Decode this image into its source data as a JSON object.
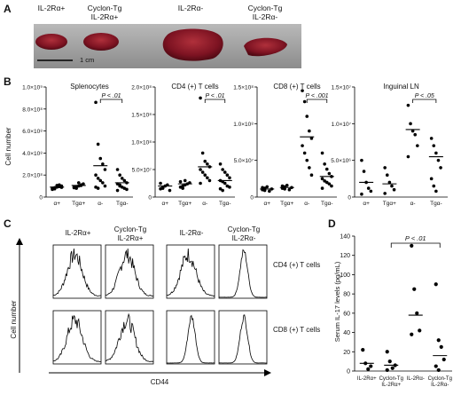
{
  "panel_a": {
    "letter": "A",
    "spleen_labels": [
      {
        "line1": "IL-2Rα+",
        "line2": ""
      },
      {
        "line1": "Cyclon-Tg",
        "line2": "IL-2Rα+"
      },
      {
        "line1": "IL-2Rα-",
        "line2": ""
      },
      {
        "line1": "Cyclon-Tg",
        "line2": "IL-2Rα-"
      }
    ],
    "scale_bar_label": "1 cm"
  },
  "panel_b": {
    "letter": "B",
    "ylabel": "Cell number",
    "tick_label_map": {
      "a+": "α+",
      "tg+": "Tgα+",
      "a-": "α-",
      "tg-": "Tgα-"
    }
  },
  "panel_c": {
    "letter": "C",
    "column_headers": [
      {
        "line1": "IL-2Rα+",
        "line2": ""
      },
      {
        "line1": "Cyclon-Tg",
        "line2": "IL-2Rα+"
      },
      {
        "line1": "IL-2Rα-",
        "line2": ""
      },
      {
        "line1": "Cyclon-Tg",
        "line2": "IL-2Rα-"
      }
    ],
    "row_labels": [
      "CD4 (+) T cells",
      "CD8 (+) T cells"
    ],
    "ylabel": "Cell number",
    "xlabel": "CD44"
  },
  "panel_d": {
    "letter": "D"
  },
  "chart_data": [
    {
      "type": "scatter",
      "title": "Splenocytes",
      "categories": [
        "a+",
        "tg+",
        "a-",
        "tg-"
      ],
      "ylim": [
        0,
        1000000000
      ],
      "yticks": [
        0,
        200000000,
        400000000,
        600000000,
        800000000,
        1000000000
      ],
      "ytick_labels": [
        "0",
        "2.0×10⁸",
        "4.0×10⁸",
        "6.0×10⁸",
        "8.0×10⁸",
        "1.0×10⁹"
      ],
      "series": [
        {
          "values": [
            [
              80000000,
              85000000,
              90000000,
              95000000,
              100000000,
              70000000,
              75000000,
              105000000,
              110000000,
              88000000
            ],
            [
              85000000,
              95000000,
              100000000,
              110000000,
              120000000,
              90000000,
              80000000,
              130000000,
              105000000
            ],
            [
              860000000,
              480000000,
              350000000,
              300000000,
              250000000,
              200000000,
              170000000,
              150000000,
              130000000,
              100000000,
              90000000,
              80000000
            ],
            [
              250000000,
              200000000,
              170000000,
              150000000,
              130000000,
              120000000,
              100000000,
              90000000,
              80000000,
              70000000,
              60000000,
              110000000
            ]
          ]
        }
      ],
      "means": [
        90000000,
        105000000,
        285000000,
        130000000
      ],
      "annotation": {
        "text": "P < .01",
        "from": 2,
        "to": 3
      }
    },
    {
      "type": "scatter",
      "title": "CD4 (+) T cells",
      "categories": [
        "a+",
        "tg+",
        "a-",
        "tg-"
      ],
      "ylim": [
        0,
        200000000
      ],
      "yticks": [
        0,
        50000000,
        100000000,
        150000000,
        200000000
      ],
      "ytick_labels": [
        "0",
        "5.0×10⁷",
        "1.0×10⁸",
        "1.5×10⁸",
        "2.0×10⁸"
      ],
      "series": [
        {
          "values": [
            [
              15000000,
              18000000,
              20000000,
              22000000,
              12000000,
              25000000,
              16000000
            ],
            [
              18000000,
              20000000,
              22000000,
              24000000,
              26000000,
              28000000,
              16000000,
              30000000
            ],
            [
              180000000,
              80000000,
              65000000,
              60000000,
              55000000,
              50000000,
              45000000,
              40000000,
              35000000,
              30000000,
              25000000
            ],
            [
              60000000,
              50000000,
              45000000,
              40000000,
              35000000,
              30000000,
              28000000,
              25000000,
              20000000,
              18000000,
              15000000,
              12000000
            ]
          ]
        }
      ],
      "means": [
        20000000,
        24000000,
        55000000,
        30000000
      ],
      "annotation": {
        "text": "P < .01",
        "from": 2,
        "to": 3
      }
    },
    {
      "type": "scatter",
      "title": "CD8 (+) T cells",
      "categories": [
        "a+",
        "tg+",
        "a-",
        "tg-"
      ],
      "ylim": [
        0,
        150000000
      ],
      "yticks": [
        0,
        50000000,
        100000000,
        150000000
      ],
      "ytick_labels": [
        "0",
        "5.0×10⁷",
        "1.0×10⁸",
        "1.5×10⁸"
      ],
      "series": [
        {
          "values": [
            [
              10000000,
              12000000,
              14000000,
              8000000,
              11000000,
              13000000,
              9000000
            ],
            [
              12000000,
              14000000,
              16000000,
              10000000,
              13000000,
              15000000,
              11000000
            ],
            [
              145000000,
              130000000,
              110000000,
              90000000,
              80000000,
              70000000,
              60000000,
              50000000,
              40000000,
              30000000
            ],
            [
              60000000,
              45000000,
              38000000,
              32000000,
              28000000,
              25000000,
              22000000,
              20000000,
              18000000,
              15000000,
              12000000
            ]
          ]
        }
      ],
      "means": [
        11000000,
        13000000,
        82000000,
        28000000
      ],
      "annotation": {
        "text": "P < .001",
        "from": 2,
        "to": 3
      }
    },
    {
      "type": "scatter",
      "title": "Inguinal LN",
      "categories": [
        "a+",
        "tg+",
        "a-",
        "tg-"
      ],
      "ylim": [
        0,
        15000000
      ],
      "yticks": [
        0,
        5000000,
        10000000,
        15000000
      ],
      "ytick_labels": [
        "0",
        "5.0×10⁶",
        "1.0×10⁷",
        "1.5×10⁷"
      ],
      "series": [
        {
          "values": [
            [
              5000000,
              3500000,
              2000000,
              1200000,
              800000,
              400000
            ],
            [
              4000000,
              3000000,
              2000000,
              1500000,
              1000000,
              500000
            ],
            [
              12500000,
              10000000,
              9000000,
              8500000,
              7000000,
              5500000
            ],
            [
              8000000,
              7000000,
              6000000,
              5000000,
              4000000,
              2500000,
              1500000,
              800000
            ]
          ]
        }
      ],
      "means": [
        2000000,
        1800000,
        9200000,
        5500000
      ],
      "annotation": {
        "text": "P < .05",
        "from": 2,
        "to": 3
      }
    },
    {
      "type": "scatter",
      "ylabel": "Serum IL-17 levels (pg/mL)",
      "categories": [
        "IL-2Rα+",
        "Cyclon-Tg IL-2Rα+",
        "IL-2Rα-",
        "Cyclon-Tg IL-2Rα-"
      ],
      "ylim": [
        0,
        140
      ],
      "yticks": [
        0,
        20,
        40,
        60,
        80,
        100,
        120,
        140
      ],
      "series": [
        {
          "values": [
            [
              22,
              8,
              2,
              5
            ],
            [
              20,
              10,
              3,
              6,
              1
            ],
            [
              130,
              85,
              60,
              42,
              38
            ],
            [
              90,
              32,
              25,
              12,
              5,
              1
            ]
          ]
        }
      ],
      "means": [
        8,
        6,
        58,
        16
      ],
      "annotation": {
        "text": "P < .01",
        "from": 1,
        "to": 3
      }
    }
  ]
}
